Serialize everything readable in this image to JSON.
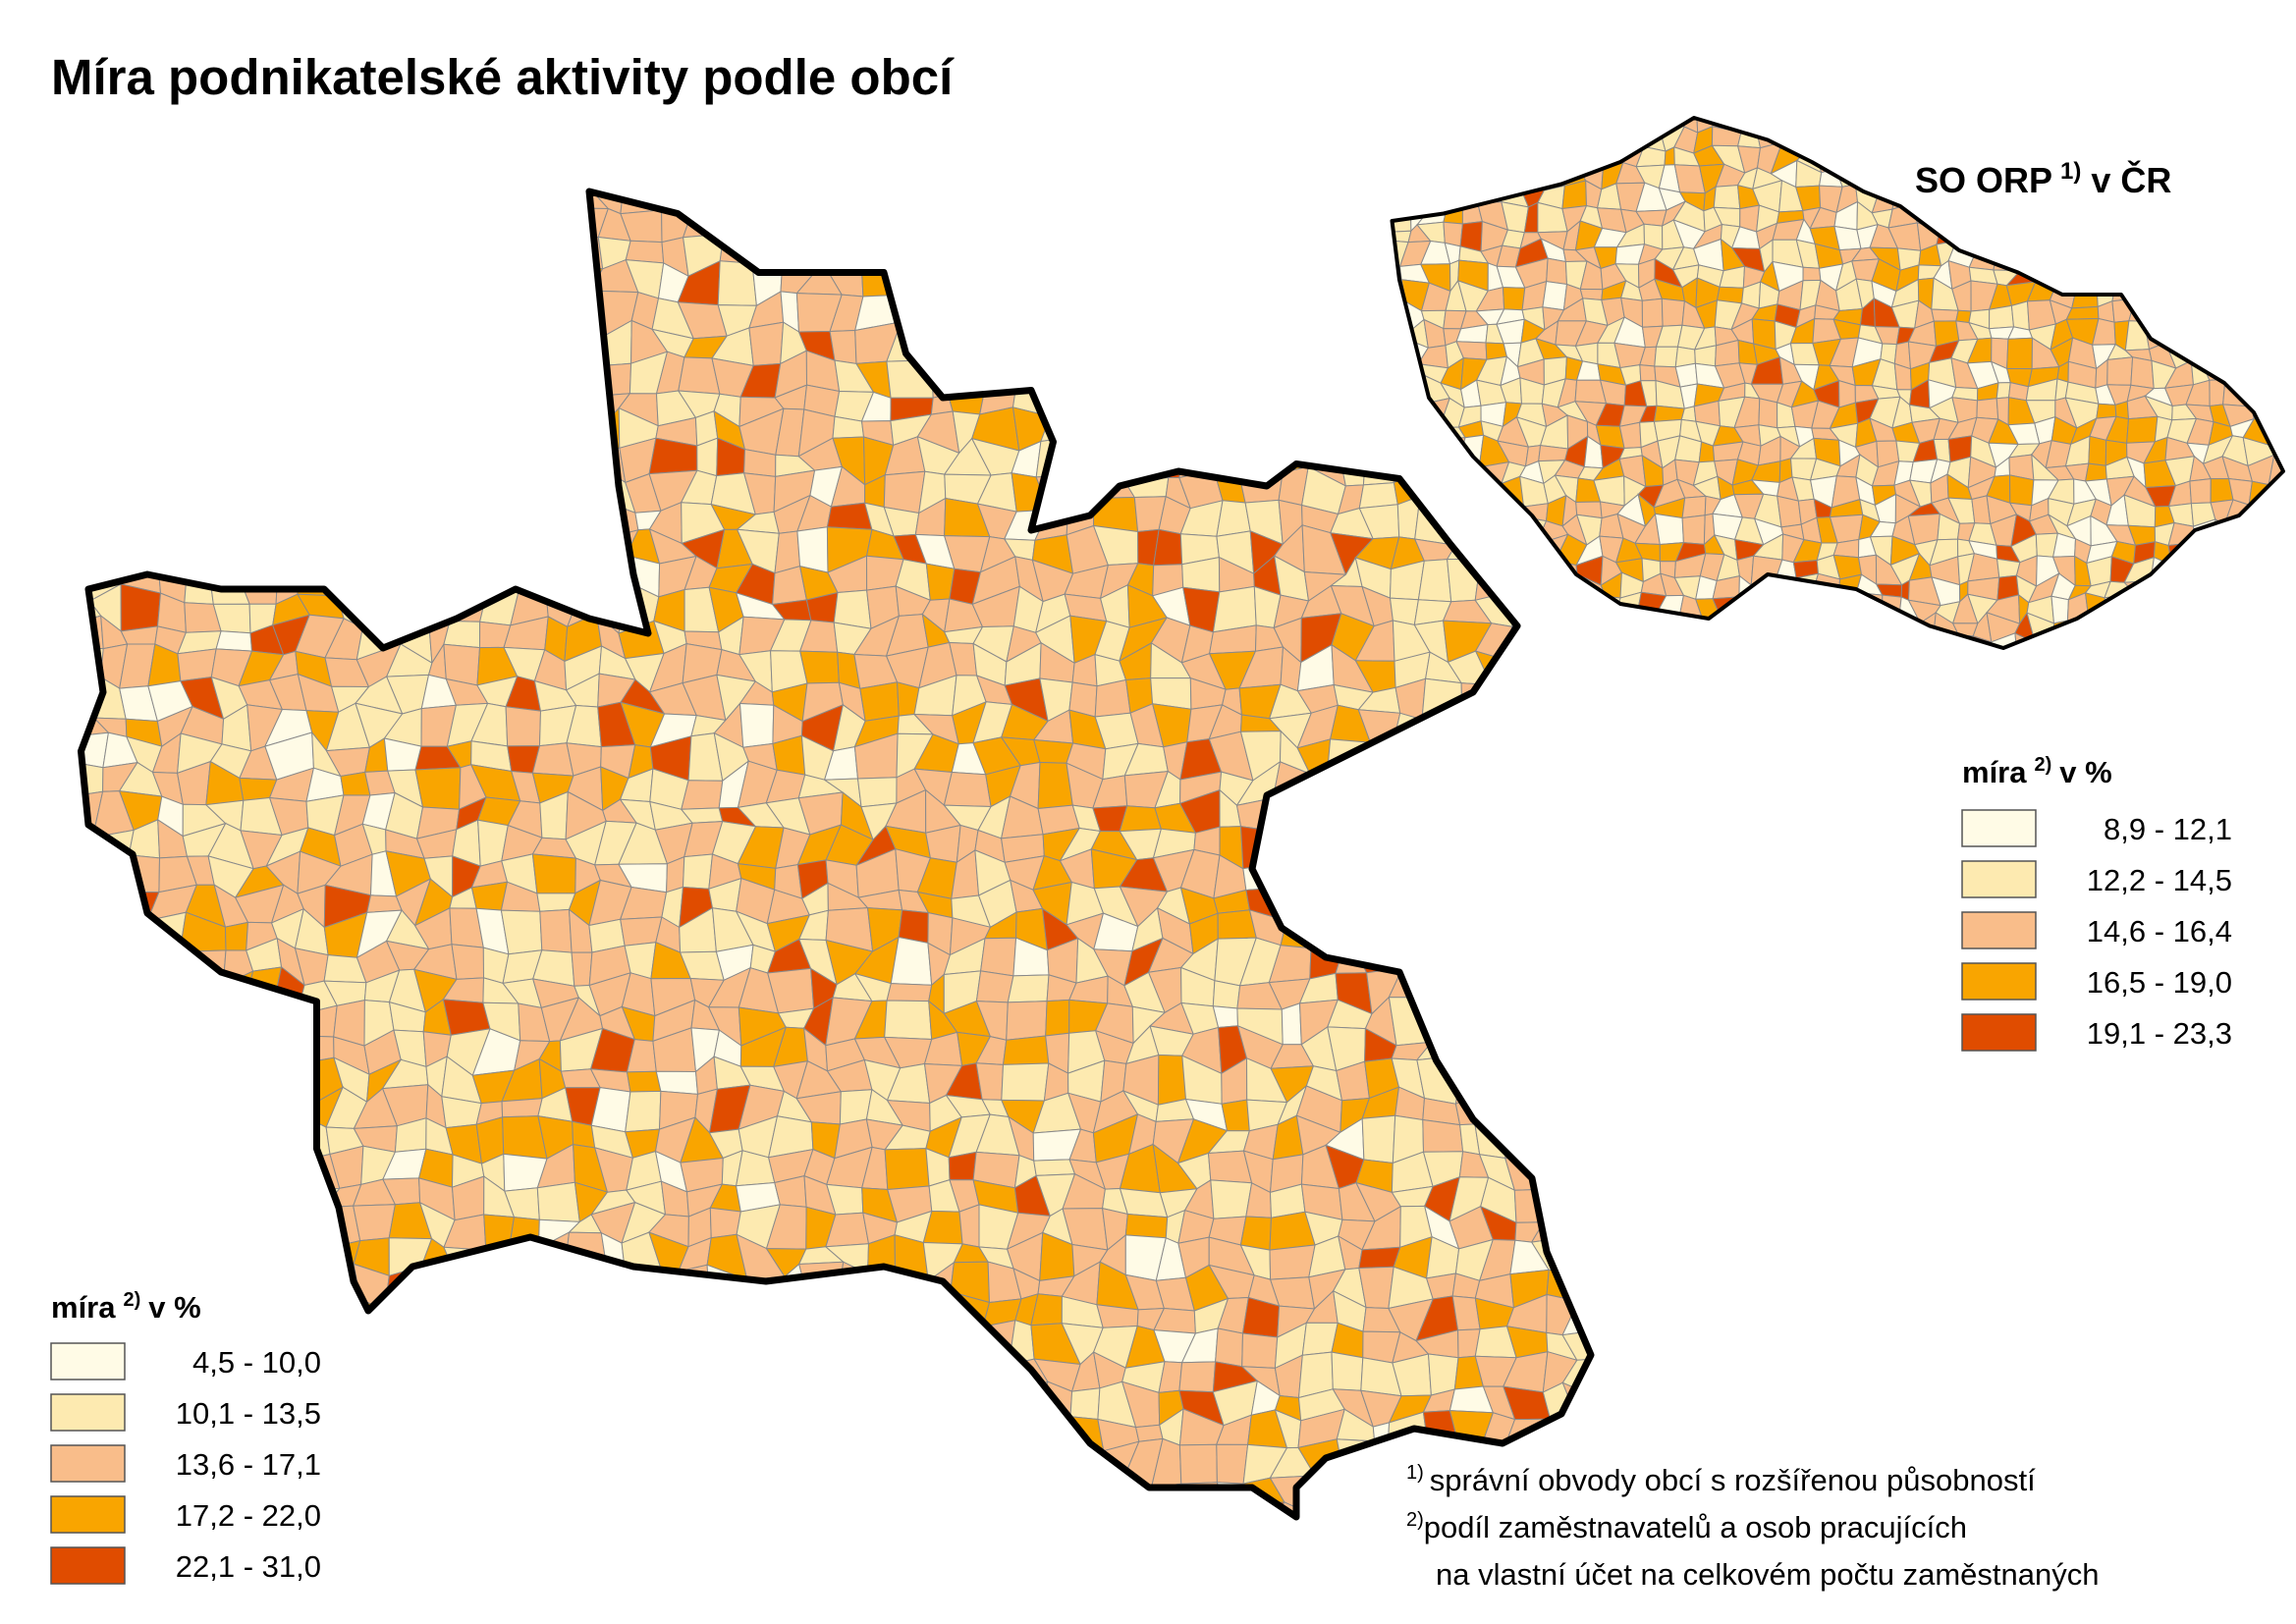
{
  "title": "Míra podnikatelské aktivity podle obcí",
  "main_legend": {
    "title": "míra",
    "note_mark": "2)",
    "unit": "v %",
    "items": [
      {
        "label": "4,5 - 10,0",
        "color": "#fffbe6"
      },
      {
        "label": "10,1 - 13,5",
        "color": "#fdeab0"
      },
      {
        "label": "13,6 - 17,1",
        "color": "#f9bd8a"
      },
      {
        "label": "17,2 - 22,0",
        "color": "#f9a500"
      },
      {
        "label": "22,1 - 31,0",
        "color": "#e04c00"
      }
    ]
  },
  "inset": {
    "title": "SO ORP",
    "note_mark": "1)",
    "title_end": "v ČR",
    "legend": {
      "title": "míra",
      "note_mark": "2)",
      "unit": "v %",
      "items": [
        {
          "label": "8,9 - 12,1",
          "color": "#fffbe6"
        },
        {
          "label": "12,2 - 14,5",
          "color": "#fdeab0"
        },
        {
          "label": "14,6 - 16,4",
          "color": "#f9bd8a"
        },
        {
          "label": "16,5 - 19,0",
          "color": "#f9a500"
        },
        {
          "label": "19,1 - 23,3",
          "color": "#e04c00"
        }
      ]
    }
  },
  "footnotes": [
    {
      "mark": "1)",
      "lines": [
        "správní obvody obcí s rozšířenou působností"
      ]
    },
    {
      "mark": "2)",
      "lines": [
        "podíl zaměstnavatelů a osob pracujících",
        "na vlastní účet na celkovém počtu zaměstnaných"
      ]
    }
  ]
}
